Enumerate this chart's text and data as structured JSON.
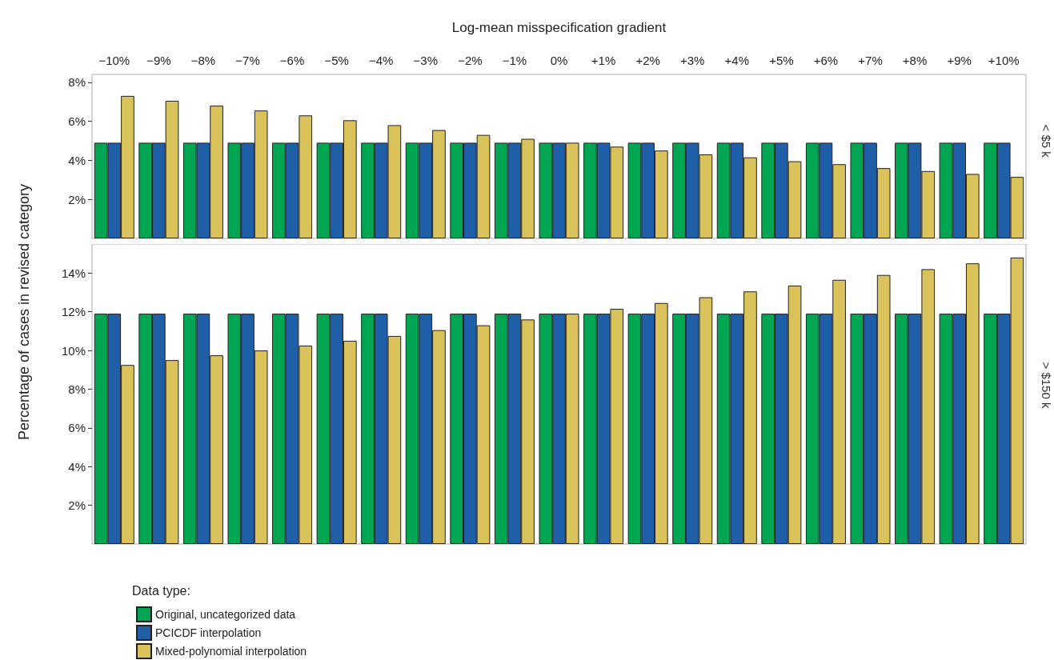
{
  "chart_data": [
    {
      "type": "bar",
      "xlabel": "Log-mean misspecification gradient",
      "ylabel": "Percentage of cases in revised category",
      "categories": [
        "−10%",
        "−9%",
        "−8%",
        "−7%",
        "−6%",
        "−5%",
        "−4%",
        "−3%",
        "−2%",
        "−1%",
        "0%",
        "+1%",
        "+2%",
        "+3%",
        "+4%",
        "+5%",
        "+6%",
        "+7%",
        "+8%",
        "+9%",
        "+10%"
      ],
      "series": [
        {
          "color": "#00a651",
          "values": [
            4.9,
            4.9,
            4.9,
            4.9,
            4.9,
            4.9,
            4.9,
            4.9,
            4.9,
            4.9,
            4.9,
            4.9,
            4.9,
            4.9,
            4.9,
            4.9,
            4.9,
            4.9,
            4.9,
            4.9,
            4.9
          ]
        },
        {
          "color": "#1f5fa8",
          "values": [
            4.9,
            4.9,
            4.9,
            4.9,
            4.9,
            4.9,
            4.9,
            4.9,
            4.9,
            4.9,
            4.9,
            4.9,
            4.9,
            4.9,
            4.9,
            4.9,
            4.9,
            4.9,
            4.9,
            4.9,
            4.9
          ]
        },
        {
          "color": "#d9c35a",
          "values": [
            7.3,
            7.05,
            6.8,
            6.55,
            6.3,
            6.05,
            5.8,
            5.55,
            5.3,
            5.1,
            4.9,
            4.7,
            4.5,
            4.3,
            4.15,
            3.95,
            3.8,
            3.6,
            3.45,
            3.3,
            3.15
          ]
        }
      ],
      "ylim": [
        0,
        8.4
      ],
      "yticks": [
        {
          "value": 2,
          "label": "2%"
        },
        {
          "value": 4,
          "label": "4%"
        },
        {
          "value": 6,
          "label": "6%"
        },
        {
          "value": 8,
          "label": "8%"
        }
      ],
      "annotations": [
        "< $5 k"
      ],
      "grid": false,
      "legend": false
    },
    {
      "type": "bar",
      "legend_title": "Data type:",
      "categories": [
        null,
        null,
        null,
        null,
        null,
        null,
        null,
        null,
        null,
        null,
        null,
        null,
        null,
        null,
        null,
        null,
        null,
        null,
        null,
        null,
        null
      ],
      "series": [
        {
          "name": "Original, uncategorized data",
          "color": "#00a651",
          "values": [
            11.9,
            11.9,
            11.9,
            11.9,
            11.9,
            11.9,
            11.9,
            11.9,
            11.9,
            11.9,
            11.9,
            11.9,
            11.9,
            11.9,
            11.9,
            11.9,
            11.9,
            11.9,
            11.9,
            11.9,
            11.9
          ]
        },
        {
          "name": "PCICDF interpolation",
          "color": "#1f5fa8",
          "values": [
            11.9,
            11.9,
            11.9,
            11.9,
            11.9,
            11.9,
            11.9,
            11.9,
            11.9,
            11.9,
            11.9,
            11.9,
            11.9,
            11.9,
            11.9,
            11.9,
            11.9,
            11.9,
            11.9,
            11.9,
            11.9
          ]
        },
        {
          "name": "Mixed-polynomial interpolation",
          "color": "#d9c35a",
          "values": [
            9.25,
            9.5,
            9.75,
            10.0,
            10.25,
            10.5,
            10.75,
            11.05,
            11.3,
            11.6,
            11.9,
            12.15,
            12.45,
            12.75,
            13.05,
            13.35,
            13.65,
            13.9,
            14.2,
            14.5,
            14.8
          ]
        }
      ],
      "ylim": [
        0,
        15.5
      ],
      "yticks": [
        {
          "value": 2,
          "label": "2%"
        },
        {
          "value": 4,
          "label": "4%"
        },
        {
          "value": 6,
          "label": "6%"
        },
        {
          "value": 8,
          "label": "8%"
        },
        {
          "value": 10,
          "label": "10%"
        },
        {
          "value": 12,
          "label": "12%"
        },
        {
          "value": 14,
          "label": "14%"
        }
      ],
      "annotations": [
        "> $150 k"
      ],
      "tick_labels": "y",
      "grid": false,
      "legend": "bottom left"
    }
  ]
}
